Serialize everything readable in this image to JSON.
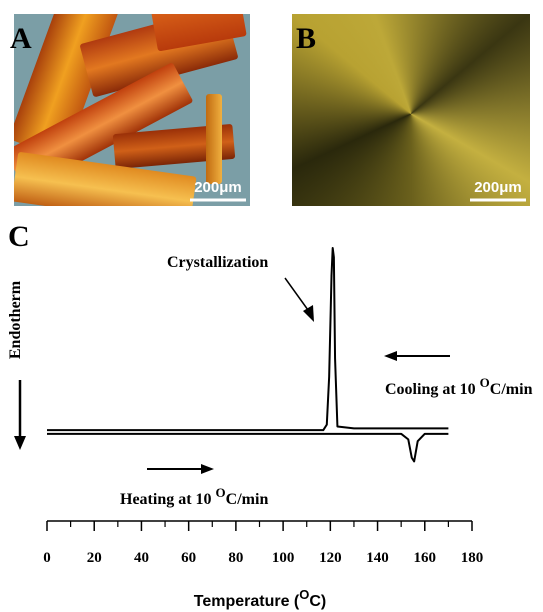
{
  "panels": [
    {
      "label": "A",
      "scale_bar": "200μm"
    },
    {
      "label": "B",
      "scale_bar": "200μm"
    }
  ],
  "chart_data": {
    "type": "line",
    "panel_label": "C",
    "xlabel": {
      "before": "Temperature (",
      "sup": "O",
      "after": "C)"
    },
    "ylabel": "Endotherm",
    "annotations": {
      "crystallization": "Crystallization",
      "cooling": {
        "before": "Cooling at 10 ",
        "sup": "O",
        "after": "C/min"
      },
      "heating": {
        "before": "Heating at 10 ",
        "sup": "O",
        "after": "C/min"
      }
    },
    "xlim": [
      0,
      180
    ],
    "xticks": [
      0,
      20,
      40,
      60,
      80,
      100,
      120,
      140,
      160,
      180
    ],
    "minor_xticks": [
      10,
      30,
      50,
      70,
      90,
      110,
      130,
      150,
      170
    ],
    "ylim": [
      -25,
      110
    ],
    "series": [
      {
        "color": "#000000",
        "x": [
          0,
          100,
          150,
          153,
          154.5,
          155.5,
          157,
          160,
          170
        ],
        "values": [
          -1,
          -1,
          -1,
          -4,
          -14,
          -16,
          -5,
          -1,
          -1
        ]
      },
      {
        "color": "#000000",
        "x": [
          170,
          130,
          123,
          122,
          121.5,
          121,
          120.5,
          119.5,
          118.5,
          117,
          100,
          0
        ],
        "values": [
          2,
          2,
          3,
          40,
          95,
          100,
          85,
          30,
          4,
          1,
          1,
          1
        ]
      }
    ]
  }
}
